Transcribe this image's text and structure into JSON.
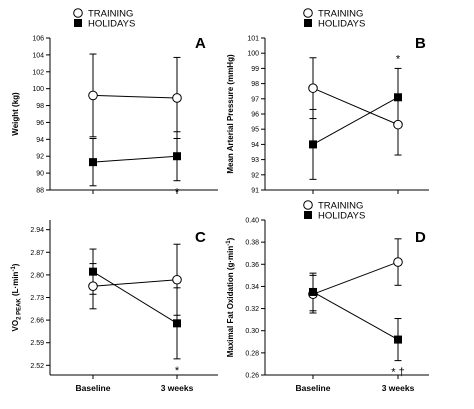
{
  "chart_data": [
    {
      "type": "line",
      "panel": "A",
      "ylabel": "Weight (kg)",
      "categories": [
        "Baseline",
        "3 weeks"
      ],
      "ylim": [
        88,
        106
      ],
      "yticks": [
        "88",
        "90",
        "92",
        "94",
        "96",
        "98",
        "100",
        "102",
        "104",
        "106"
      ],
      "legend": [
        "TRAINING",
        "HOLIDAYS"
      ],
      "series": [
        {
          "name": "TRAINING",
          "values": [
            99.2,
            98.9
          ],
          "err": [
            4.9,
            4.8
          ]
        },
        {
          "name": "HOLIDAYS",
          "values": [
            91.3,
            92.0
          ],
          "err": [
            2.8,
            2.9
          ]
        }
      ],
      "annotations": [
        {
          "text": "*",
          "series": "HOLIDAYS",
          "index": 1
        }
      ]
    },
    {
      "type": "line",
      "panel": "B",
      "ylabel": "Mean Arterial Pressure (mmHg)",
      "categories": [
        "Baseline",
        "3 weeks"
      ],
      "ylim": [
        91,
        101
      ],
      "yticks": [
        "91",
        "92",
        "93",
        "94",
        "95",
        "96",
        "97",
        "98",
        "99",
        "100",
        "101"
      ],
      "legend": [
        "TRAINING",
        "HOLIDAYS"
      ],
      "series": [
        {
          "name": "TRAINING",
          "values": [
            97.7,
            95.3
          ],
          "err": [
            2.0,
            2.0
          ]
        },
        {
          "name": "HOLIDAYS",
          "values": [
            94.0,
            97.1
          ],
          "err": [
            2.3,
            1.9
          ]
        }
      ],
      "annotations": [
        {
          "text": "*",
          "series": "HOLIDAYS",
          "index": 1
        }
      ]
    },
    {
      "type": "line",
      "panel": "C",
      "ylabel_main": "VO",
      "ylabel_sub": "2 PEAK",
      "ylabel_tail": " (L·min",
      "ylabel_sup": "-1",
      "ylabel_end": ")",
      "categories": [
        "Baseline",
        "3 weeks"
      ],
      "ylim": [
        2.49,
        2.97
      ],
      "yticks": [
        "2.52",
        "2.59",
        "2.66",
        "2.73",
        "2.80",
        "2.87",
        "2.94"
      ],
      "series": [
        {
          "name": "TRAINING",
          "values": [
            2.765,
            2.785
          ],
          "err": [
            0.07,
            0.11
          ]
        },
        {
          "name": "HOLIDAYS",
          "values": [
            2.81,
            2.65
          ],
          "err": [
            0.07,
            0.11
          ]
        }
      ],
      "annotations": [
        {
          "text": "*",
          "series": "HOLIDAYS",
          "index": 1
        }
      ]
    },
    {
      "type": "line",
      "panel": "D",
      "ylabel_main": "Maximal Fat Oxidation (g·min",
      "ylabel_sup": "-1",
      "ylabel_end": ")",
      "categories": [
        "Baseline",
        "3 weeks"
      ],
      "ylim": [
        0.26,
        0.4
      ],
      "yticks": [
        "0.26",
        "0.28",
        "0.30",
        "0.32",
        "0.34",
        "0.36",
        "0.38",
        "0.40"
      ],
      "legend": [
        "TRAINING",
        "HOLIDAYS"
      ],
      "series": [
        {
          "name": "TRAINING",
          "values": [
            0.333,
            0.362
          ],
          "err": [
            0.017,
            0.021
          ]
        },
        {
          "name": "HOLIDAYS",
          "values": [
            0.335,
            0.292
          ],
          "err": [
            0.017,
            0.019
          ]
        }
      ],
      "annotations": [
        {
          "text": "* †",
          "series": "HOLIDAYS",
          "index": 1
        }
      ]
    }
  ]
}
